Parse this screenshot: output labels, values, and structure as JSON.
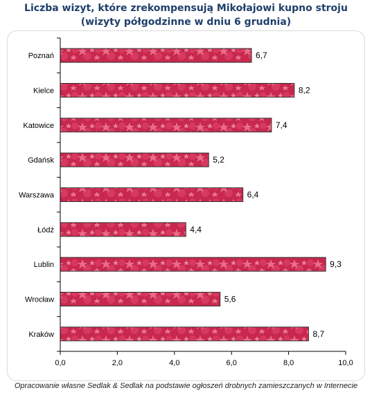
{
  "header": {
    "title_line1": "Liczba wizyt, które zrekompensują Mikołajowi kupno stroju",
    "title_line2": "(wizyty półgodzinne w dniu 6 grudnia)"
  },
  "footer": {
    "source": "Opracowanie własne Sedlak & Sedlak na podstawie ogłoszeń drobnych zamieszczanych w Internecie"
  },
  "colors": {
    "bar_fill": "#c8284e",
    "bar_light": "#f07892",
    "bar_border": "#333333",
    "axis": "#000000"
  },
  "chart_data": {
    "type": "bar",
    "orientation": "horizontal",
    "categories": [
      "Poznań",
      "Kielce",
      "Katowice",
      "Gdańsk",
      "Warszawa",
      "Łódź",
      "Lublin",
      "Wrocław",
      "Kraków"
    ],
    "values": [
      6.7,
      8.2,
      7.4,
      5.2,
      6.4,
      4.4,
      9.3,
      5.6,
      8.7
    ],
    "value_labels": [
      "6,7",
      "8,2",
      "7,4",
      "5,2",
      "6,4",
      "4,4",
      "9,3",
      "5,6",
      "8,7"
    ],
    "xlim": [
      0,
      10
    ],
    "xticks": [
      0,
      2,
      4,
      6,
      8,
      10
    ],
    "xtick_labels": [
      "0,0",
      "2,0",
      "4,0",
      "6,0",
      "8,0",
      "10,0"
    ],
    "grid": false,
    "legend": false
  }
}
